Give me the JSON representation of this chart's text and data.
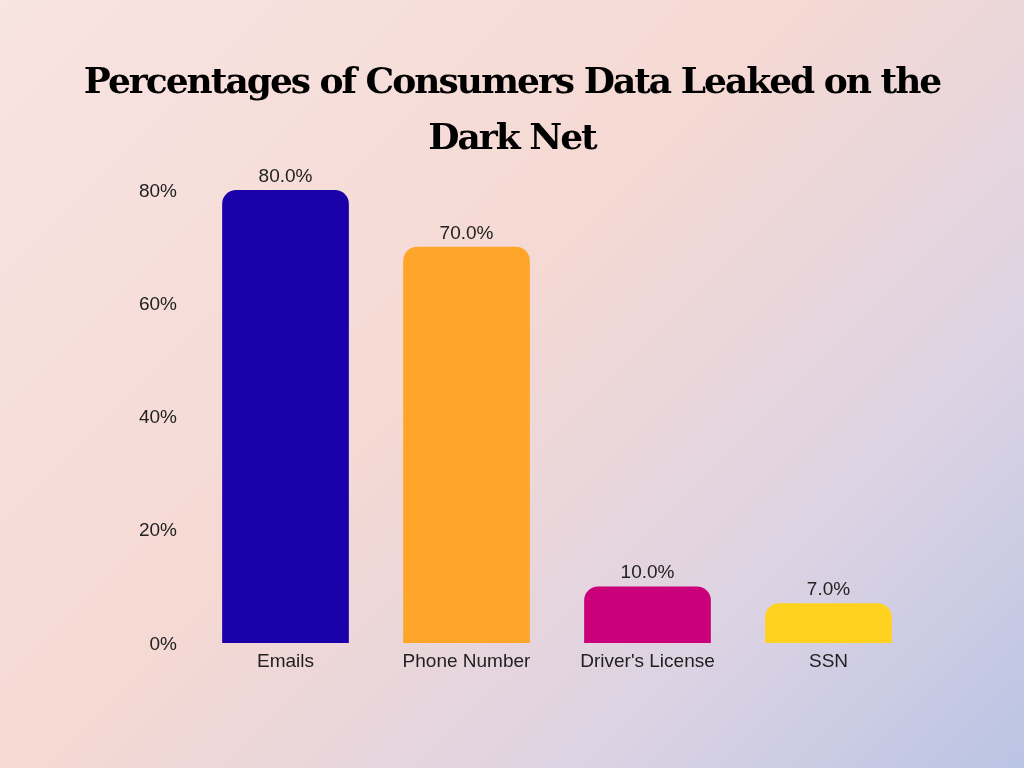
{
  "chart_data": {
    "type": "bar",
    "title": "Percentages of Consumers Data Leaked on the Dark Net",
    "categories": [
      "Emails",
      "Phone Number",
      "Driver's License",
      "SSN"
    ],
    "values": [
      80,
      70,
      10,
      7
    ],
    "colors": [
      "#1a00a8",
      "#ffa52a",
      "#c9007a",
      "#ffd220"
    ],
    "value_labels": [
      "80.0%",
      "70.0%",
      "10.0%",
      "7.0%"
    ],
    "ylim": [
      0,
      80
    ],
    "yticks": [
      {
        "value": 0,
        "label": "0%"
      },
      {
        "value": 20,
        "label": "20%"
      },
      {
        "value": 40,
        "label": "40%"
      },
      {
        "value": 60,
        "label": "60%"
      },
      {
        "value": 80,
        "label": "80%"
      }
    ],
    "grid": false
  }
}
